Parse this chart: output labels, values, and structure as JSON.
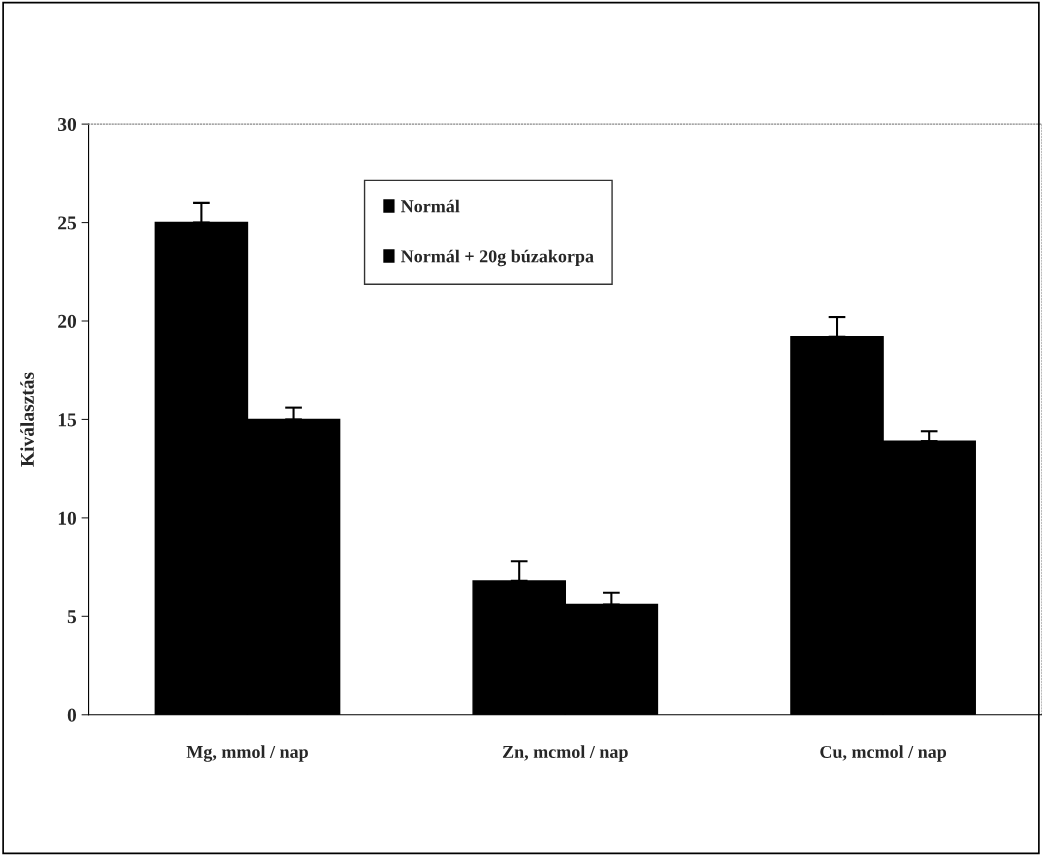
{
  "chart_data": {
    "type": "bar",
    "ylabel": "Kiválasztás",
    "categories": [
      "Mg, mmol / nap",
      "Zn, mcmol / nap",
      "Cu, mcmol / nap"
    ],
    "series": [
      {
        "name": "Normál",
        "color": "#000000",
        "values": [
          25,
          6.8,
          19.2
        ],
        "errors": [
          [
            25,
            26
          ],
          [
            6.8,
            7.8
          ],
          [
            19.2,
            20.2
          ]
        ]
      },
      {
        "name": "Normál + 20g búzakorpa",
        "color": "#000000",
        "values": [
          15,
          5.6,
          13.9
        ],
        "errors": [
          [
            15,
            15.6
          ],
          [
            5.6,
            6.2
          ],
          [
            13.9,
            14.4
          ]
        ]
      }
    ],
    "ylim": [
      0,
      30
    ],
    "yticks": [
      0,
      5,
      10,
      15,
      20,
      25,
      30
    ],
    "grid": false,
    "legend": "top"
  }
}
